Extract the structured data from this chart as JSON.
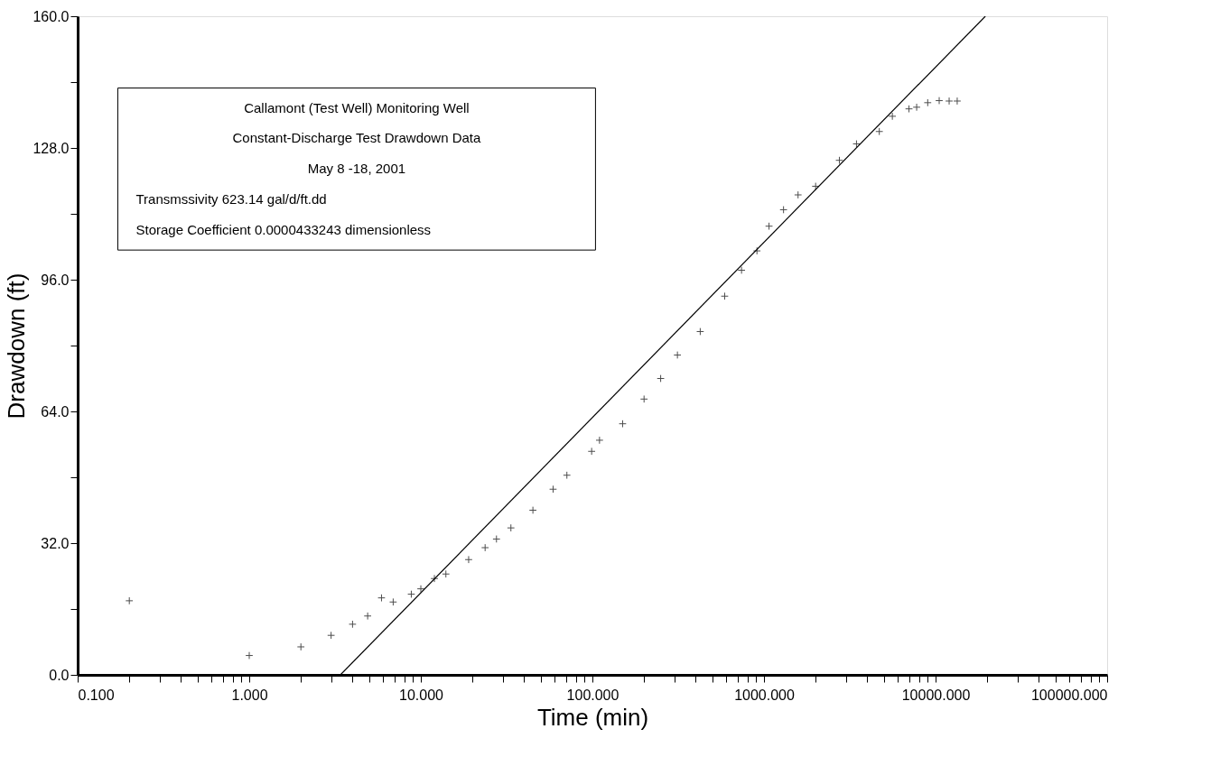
{
  "chart_data": {
    "type": "scatter",
    "xlabel": "Time (min)",
    "ylabel": "Drawdown (ft)",
    "log": "x",
    "annotations": [
      "Callamont (Test Well) Monitoring Well",
      "Constant-Discharge Test Drawdown Data",
      "May 8 -18, 2001",
      "Transmssivity 623.14 gal/d/ft.dd",
      "Storage Coefficient 0.0000433243 dimensionless"
    ],
    "xlim": [
      0.1,
      100000
    ],
    "ylim": [
      0,
      160
    ],
    "xticks": [
      {
        "value": 0.1,
        "label": "0.100"
      },
      {
        "value": 0.2,
        "label": null
      },
      {
        "value": 0.3,
        "label": null
      },
      {
        "value": 0.4,
        "label": null
      },
      {
        "value": 0.5,
        "label": null
      },
      {
        "value": 0.6,
        "label": null
      },
      {
        "value": 0.7,
        "label": null
      },
      {
        "value": 0.8,
        "label": null
      },
      {
        "value": 0.9,
        "label": null
      },
      {
        "value": 1,
        "label": "1.000"
      },
      {
        "value": 2,
        "label": null
      },
      {
        "value": 3,
        "label": null
      },
      {
        "value": 4,
        "label": null
      },
      {
        "value": 5,
        "label": null
      },
      {
        "value": 6,
        "label": null
      },
      {
        "value": 7,
        "label": null
      },
      {
        "value": 8,
        "label": null
      },
      {
        "value": 9,
        "label": null
      },
      {
        "value": 10,
        "label": "10.000"
      },
      {
        "value": 20,
        "label": null
      },
      {
        "value": 30,
        "label": null
      },
      {
        "value": 40,
        "label": null
      },
      {
        "value": 50,
        "label": null
      },
      {
        "value": 60,
        "label": null
      },
      {
        "value": 70,
        "label": null
      },
      {
        "value": 80,
        "label": null
      },
      {
        "value": 90,
        "label": null
      },
      {
        "value": 100,
        "label": "100.000"
      },
      {
        "value": 200,
        "label": null
      },
      {
        "value": 300,
        "label": null
      },
      {
        "value": 400,
        "label": null
      },
      {
        "value": 500,
        "label": null
      },
      {
        "value": 600,
        "label": null
      },
      {
        "value": 700,
        "label": null
      },
      {
        "value": 800,
        "label": null
      },
      {
        "value": 900,
        "label": null
      },
      {
        "value": 1000,
        "label": "1000.000"
      },
      {
        "value": 2000,
        "label": null
      },
      {
        "value": 3000,
        "label": null
      },
      {
        "value": 4000,
        "label": null
      },
      {
        "value": 5000,
        "label": null
      },
      {
        "value": 6000,
        "label": null
      },
      {
        "value": 7000,
        "label": null
      },
      {
        "value": 8000,
        "label": null
      },
      {
        "value": 9000,
        "label": null
      },
      {
        "value": 10000,
        "label": "10000.000"
      },
      {
        "value": 20000,
        "label": null
      },
      {
        "value": 30000,
        "label": null
      },
      {
        "value": 40000,
        "label": null
      },
      {
        "value": 50000,
        "label": null
      },
      {
        "value": 60000,
        "label": null
      },
      {
        "value": 70000,
        "label": null
      },
      {
        "value": 80000,
        "label": null
      },
      {
        "value": 90000,
        "label": null
      },
      {
        "value": 100000,
        "label": "100000.000"
      }
    ],
    "yticks": [
      {
        "value": 0,
        "label": "0.0"
      },
      {
        "value": 16,
        "label": null
      },
      {
        "value": 32,
        "label": "32.0"
      },
      {
        "value": 48,
        "label": null
      },
      {
        "value": 64,
        "label": "64.0"
      },
      {
        "value": 80,
        "label": null
      },
      {
        "value": 96,
        "label": "96.0"
      },
      {
        "value": 112,
        "label": null
      },
      {
        "value": 128,
        "label": "128.0"
      },
      {
        "value": 144,
        "label": null
      },
      {
        "value": 160,
        "label": "160.0"
      }
    ],
    "grid": false,
    "series": [
      {
        "marker": "cross",
        "color": "#000000",
        "x": [
          0.2,
          1.0,
          2.0,
          3.0,
          4.0,
          4.9,
          5.9,
          6.9,
          8.8,
          10,
          12,
          14,
          19,
          23.7,
          27.6,
          33.5,
          45,
          59,
          71,
          99,
          110,
          150,
          200,
          250,
          313,
          425,
          590,
          740,
          910,
          1070,
          1300,
          1580,
          2000,
          2750,
          3460,
          4700,
          5600,
          7000,
          7760,
          9000,
          10500,
          12000,
          13370
        ],
        "values": [
          18,
          4.7,
          6.8,
          9.6,
          12.3,
          14.3,
          18.7,
          17.7,
          19.6,
          20.9,
          23.4,
          24.5,
          28,
          30.9,
          33,
          35.7,
          40,
          45.1,
          48.5,
          54.3,
          57,
          61,
          67,
          72,
          77.7,
          83.4,
          92,
          98.3,
          103,
          109,
          113,
          116.6,
          118.7,
          125,
          129,
          132,
          135.7,
          137.5,
          137.9,
          139,
          139.5,
          139.4,
          139.4
        ]
      },
      {
        "type": "line",
        "color": "#000000",
        "x": [
          3.4,
          19500
        ],
        "values": [
          0,
          160
        ]
      }
    ]
  }
}
